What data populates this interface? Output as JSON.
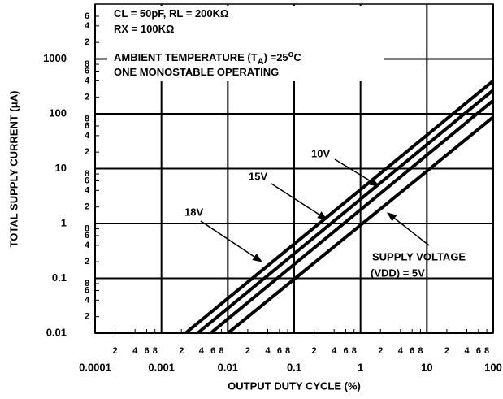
{
  "chart_data": {
    "type": "line",
    "x_label": "OUTPUT DUTY CYCLE (%)",
    "y_label": "TOTAL SUPPLY CURRENT (μA)",
    "log_x": true,
    "log_y": true,
    "grid": true,
    "notes": [
      [
        "CL = 50pF, RL = 200KΩ"
      ],
      [
        "RX = 100KΩ"
      ],
      [
        "AMBIENT TEMPERATURE (T",
        "A",
        ") =25",
        "o",
        "C"
      ],
      [
        "ONE MONOSTABLE OPERATING"
      ]
    ],
    "xlim": [
      0.0001,
      100
    ],
    "ylim": [
      0.01,
      10000
    ],
    "xticks": [
      0.0001,
      0.001,
      0.01,
      0.1,
      1,
      10,
      100
    ],
    "yticks": [
      0.01,
      0.1,
      1,
      10,
      100,
      1000
    ],
    "xminorticks": [
      {
        "value": 0.0002,
        "label": "2"
      },
      {
        "value": 0.0004,
        "label": "4"
      },
      {
        "value": 0.0006,
        "label": "6"
      },
      {
        "value": 0.0008,
        "label": "8"
      },
      {
        "value": 0.002,
        "label": "2"
      },
      {
        "value": 0.004,
        "label": "4"
      },
      {
        "value": 0.006,
        "label": "6"
      },
      {
        "value": 0.008,
        "label": "8"
      },
      {
        "value": 0.02,
        "label": "2"
      },
      {
        "value": 0.04,
        "label": "4"
      },
      {
        "value": 0.06,
        "label": "6"
      },
      {
        "value": 0.08,
        "label": "8"
      },
      {
        "value": 0.2,
        "label": "2"
      },
      {
        "value": 0.4,
        "label": "4"
      },
      {
        "value": 0.6,
        "label": "6"
      },
      {
        "value": 0.8,
        "label": "8"
      },
      {
        "value": 2,
        "label": "2"
      },
      {
        "value": 4,
        "label": "4"
      },
      {
        "value": 6,
        "label": "6"
      },
      {
        "value": 8,
        "label": "8"
      },
      {
        "value": 20,
        "label": "2"
      },
      {
        "value": 40,
        "label": "4"
      },
      {
        "value": 60,
        "label": "6"
      },
      {
        "value": 80,
        "label": "8"
      }
    ],
    "yminorticks": [
      {
        "value": 0.02,
        "label": "2"
      },
      {
        "value": 0.04,
        "label": "4"
      },
      {
        "value": 0.06,
        "label": "6"
      },
      {
        "value": 0.08,
        "label": "8"
      },
      {
        "value": 0.2,
        "label": "2"
      },
      {
        "value": 0.4,
        "label": "4"
      },
      {
        "value": 0.6,
        "label": "6"
      },
      {
        "value": 0.8,
        "label": "8"
      },
      {
        "value": 2,
        "label": "2"
      },
      {
        "value": 4,
        "label": "4"
      },
      {
        "value": 6,
        "label": "6"
      },
      {
        "value": 8,
        "label": "8"
      },
      {
        "value": 20,
        "label": "2"
      },
      {
        "value": 40,
        "label": "4"
      },
      {
        "value": 60,
        "label": "6"
      },
      {
        "value": 80,
        "label": "8"
      },
      {
        "value": 200,
        "label": "2"
      },
      {
        "value": 400,
        "label": "4"
      },
      {
        "value": 600,
        "label": "6"
      },
      {
        "value": 800,
        "label": "8"
      },
      {
        "value": 2000,
        "label": "2"
      },
      {
        "value": 4000,
        "label": "4"
      },
      {
        "value": 6000,
        "label": "6"
      }
    ],
    "series": [
      {
        "name": "18V",
        "color": "#000000",
        "x": [
          0.0023,
          100
        ],
        "values": [
          0.01,
          400
        ]
      },
      {
        "name": "15V",
        "color": "#000000",
        "x": [
          0.0035,
          100
        ],
        "values": [
          0.01,
          270
        ]
      },
      {
        "name": "10V",
        "color": "#000000",
        "x": [
          0.0055,
          100
        ],
        "values": [
          0.01,
          175
        ]
      },
      {
        "name": [
          "SUPPLY VOLTAGE",
          "(VDD) = 5V"
        ],
        "color": "#000000",
        "x": [
          0.01,
          100
        ],
        "values": [
          0.01,
          87
        ]
      }
    ]
  }
}
